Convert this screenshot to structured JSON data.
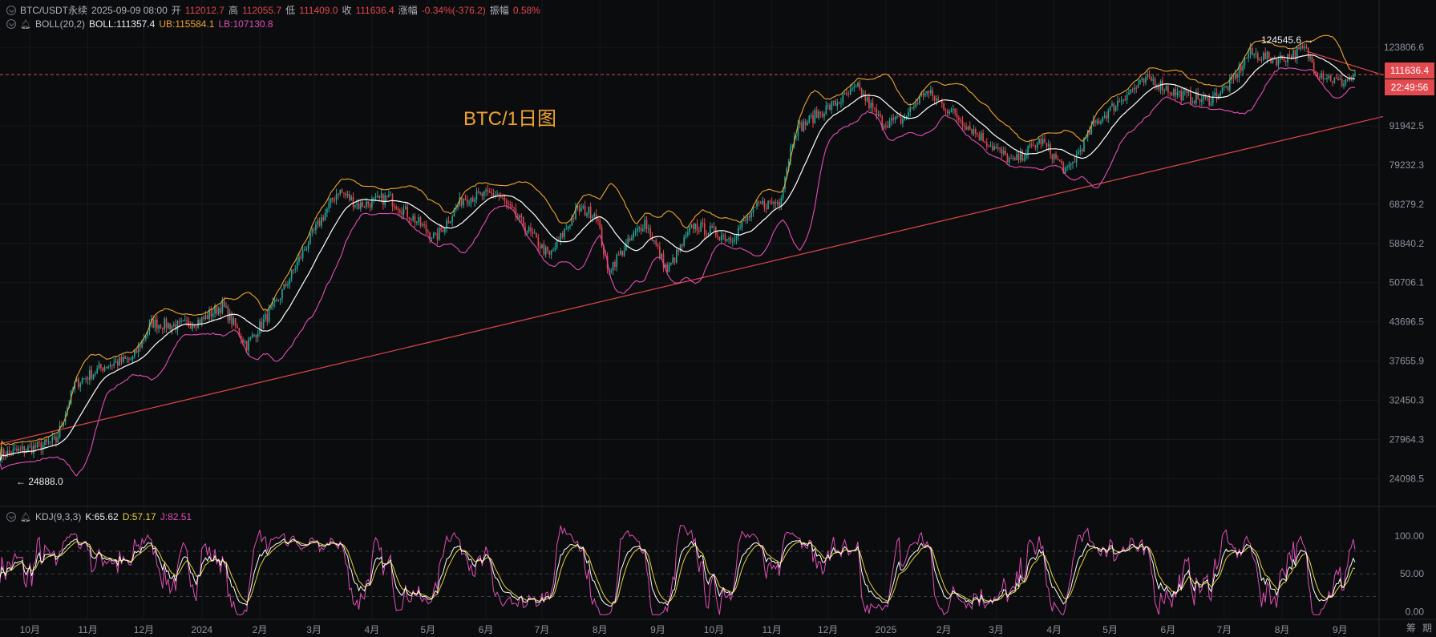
{
  "header": {
    "symbol": "BTC/USDT永续",
    "datetime": "2025-09-09 08:00",
    "open_label": "开",
    "open": "112012.7",
    "high_label": "高",
    "high": "112055.7",
    "low_label": "低",
    "low": "111409.0",
    "close_label": "收",
    "close": "111636.4",
    "change_label": "涨幅",
    "change": "-0.34%(-376.2)",
    "amplitude_label": "振幅",
    "amplitude": "0.58%"
  },
  "boll": {
    "name": "BOLL(20,2)",
    "mid": "BOLL:111357.4",
    "ub": "UB:115584.1",
    "lb": "LB:107130.8"
  },
  "kdj": {
    "name": "KDJ(9,3,3)",
    "k": "K:65.62",
    "d": "D:57.17",
    "j": "J:82.51"
  },
  "chart_title": "BTC/1日图",
  "last_price_tag": "111636.4",
  "countdown_tag": "22:49:56",
  "price_axis": {
    "ticks": [
      123806.6,
      91942.5,
      79232.3,
      68279.2,
      58840.2,
      50706.1,
      43696.5,
      37655.9,
      32450.3,
      27964.3,
      24098.5
    ],
    "tick_labels": [
      "123806.6",
      "91942.5",
      "79232.3",
      "68279.2",
      "58840.2",
      "50706.1",
      "43696.5",
      "37655.9",
      "32450.3",
      "27964.3",
      "24098.5"
    ],
    "scale": "log"
  },
  "kdj_axis": {
    "ticks": [
      100,
      50,
      0
    ],
    "tick_labels": [
      "100.00",
      "50.00",
      "0.00"
    ],
    "dashed_levels": [
      80,
      50,
      20
    ]
  },
  "time_axis": {
    "labels": [
      "10月",
      "11月",
      "12月",
      "2024",
      "2月",
      "3月",
      "4月",
      "5月",
      "6月",
      "7月",
      "8月",
      "9月",
      "10月",
      "11月",
      "12月",
      "2025",
      "2月",
      "3月",
      "4月",
      "5月",
      "6月",
      "7月",
      "8月",
      "9月"
    ]
  },
  "annotations": {
    "low_marker": "24888.0",
    "high_marker": "124545.6"
  },
  "bottom_right": [
    "筹",
    "期"
  ],
  "colors": {
    "up": "#26a69a",
    "down": "#e0474c",
    "boll_mid": "#ffffff",
    "boll_ub": "#f0a331",
    "boll_lb": "#e04fb5",
    "trend": "#e0474c",
    "k": "#ffffff",
    "d": "#e6d23c",
    "j": "#e04fb5"
  },
  "chart_data": [
    {
      "type": "candlestick",
      "title": "BTC/1日图",
      "symbol": "BTC/USDT永续",
      "interval": "1D",
      "yscale": "log",
      "ylim": [
        22500,
        132000
      ],
      "x_start": "2023-09-15",
      "x_end": "2025-09-09",
      "price_path": [
        [
          "2023-09-15",
          26400
        ],
        [
          "2023-10-01",
          27000
        ],
        [
          "2023-10-15",
          27800
        ],
        [
          "2023-10-25",
          34500
        ],
        [
          "2023-11-10",
          37000
        ],
        [
          "2023-11-25",
          38000
        ],
        [
          "2023-12-05",
          43500
        ],
        [
          "2023-12-20",
          43000
        ],
        [
          "2024-01-01",
          44000
        ],
        [
          "2024-01-12",
          46500
        ],
        [
          "2024-01-25",
          40000
        ],
        [
          "2024-02-10",
          47000
        ],
        [
          "2024-02-28",
          60000
        ],
        [
          "2024-03-14",
          72000
        ],
        [
          "2024-03-25",
          68000
        ],
        [
          "2024-04-10",
          70000
        ],
        [
          "2024-04-25",
          64000
        ],
        [
          "2024-05-05",
          60000
        ],
        [
          "2024-05-20",
          70000
        ],
        [
          "2024-06-07",
          71000
        ],
        [
          "2024-06-25",
          61000
        ],
        [
          "2024-07-05",
          56000
        ],
        [
          "2024-07-20",
          67000
        ],
        [
          "2024-07-30",
          66000
        ],
        [
          "2024-08-05",
          53000
        ],
        [
          "2024-08-25",
          64000
        ],
        [
          "2024-09-06",
          53000
        ],
        [
          "2024-09-20",
          63000
        ],
        [
          "2024-10-10",
          60000
        ],
        [
          "2024-10-25",
          68000
        ],
        [
          "2024-11-05",
          69000
        ],
        [
          "2024-11-13",
          90000
        ],
        [
          "2024-11-25",
          96000
        ],
        [
          "2024-12-05",
          100000
        ],
        [
          "2024-12-17",
          106000
        ],
        [
          "2024-12-30",
          93000
        ],
        [
          "2025-01-10",
          94000
        ],
        [
          "2025-01-22",
          105000
        ],
        [
          "2025-02-05",
          97000
        ],
        [
          "2025-02-25",
          86000
        ],
        [
          "2025-03-10",
          80000
        ],
        [
          "2025-03-25",
          87000
        ],
        [
          "2025-04-08",
          77000
        ],
        [
          "2025-04-22",
          92000
        ],
        [
          "2025-05-10",
          104000
        ],
        [
          "2025-05-22",
          110000
        ],
        [
          "2025-06-05",
          104000
        ],
        [
          "2025-06-22",
          101000
        ],
        [
          "2025-07-05",
          108000
        ],
        [
          "2025-07-14",
          121000
        ],
        [
          "2025-07-30",
          118000
        ],
        [
          "2025-08-13",
          123000
        ],
        [
          "2025-08-20",
          113000
        ],
        [
          "2025-09-01",
          108000
        ],
        [
          "2025-09-09",
          111636.4
        ]
      ],
      "last_price": 111636.4,
      "all_time_high": 124545.6,
      "range_low": 24888.0,
      "trendlines": [
        {
          "from": [
            "2023-09-15",
            27500
          ],
          "to": [
            "2025-09-09",
            93500
          ],
          "color": "#e0474c"
        },
        {
          "from": [
            "2025-08-14",
            122000
          ],
          "to": [
            "2025-09-09",
            111500
          ],
          "color": "#e0474c"
        }
      ]
    },
    {
      "type": "line",
      "title": "KDJ(9,3,3)",
      "ylim": [
        -5,
        115
      ],
      "series": [
        {
          "name": "K",
          "last": 65.62
        },
        {
          "name": "D",
          "last": 57.17
        },
        {
          "name": "J",
          "last": 82.51
        }
      ]
    }
  ]
}
